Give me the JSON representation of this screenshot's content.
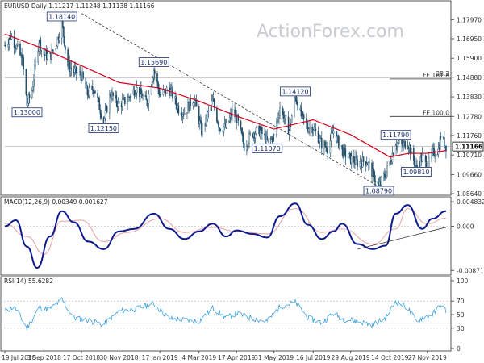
{
  "chart_data": [
    {
      "type": "candlestick",
      "title": "EURUSD Daily",
      "ohlc_readout": [
        "1.11217",
        "1.11248",
        "1.11138",
        "1.11166"
      ],
      "watermark": "ActionForex.com",
      "ylim": [
        1.0864,
        1.1842
      ],
      "y_ticks": [
        "1.17970",
        "1.16950",
        "1.15900",
        "1.14880",
        "1.13830",
        "1.12780",
        "1.11760",
        "1.10710",
        "1.09660",
        "1.08640"
      ],
      "x_ticks": [
        "19 Jul 2018",
        "3 Sep 2018",
        "17 Oct 2018",
        "30 Nov 2018",
        "17 Jan 2019",
        "4 Mar 2019",
        "17 Apr 2019",
        "31 May 2019",
        "16 Jul 2019",
        "29 Aug 2019",
        "14 Oct 2019",
        "27 Nov 2019"
      ],
      "current_price": "1.11166",
      "series": [
        {
          "kind": "close",
          "points": [
            [
              "2018-07-19",
              1.166
            ],
            [
              "2018-07-26",
              1.171
            ],
            [
              "2018-08-02",
              1.165
            ],
            [
              "2018-08-09",
              1.157
            ],
            [
              "2018-08-14",
              1.134
            ],
            [
              "2018-08-20",
              1.142
            ],
            [
              "2018-08-28",
              1.169
            ],
            [
              "2018-09-03",
              1.161
            ],
            [
              "2018-09-10",
              1.16
            ],
            [
              "2018-09-17",
              1.166
            ],
            [
              "2018-09-24",
              1.178
            ],
            [
              "2018-10-01",
              1.155
            ],
            [
              "2018-10-08",
              1.152
            ],
            [
              "2018-10-17",
              1.15
            ],
            [
              "2018-10-24",
              1.14
            ],
            [
              "2018-11-01",
              1.143
            ],
            [
              "2018-11-12",
              1.125
            ],
            [
              "2018-11-20",
              1.14
            ],
            [
              "2018-11-30",
              1.134
            ],
            [
              "2018-12-10",
              1.137
            ],
            [
              "2018-12-20",
              1.143
            ],
            [
              "2019-01-02",
              1.135
            ],
            [
              "2019-01-10",
              1.153
            ],
            [
              "2019-01-17",
              1.139
            ],
            [
              "2019-01-28",
              1.143
            ],
            [
              "2019-02-08",
              1.132
            ],
            [
              "2019-02-15",
              1.13
            ],
            [
              "2019-02-26",
              1.138
            ],
            [
              "2019-03-07",
              1.12
            ],
            [
              "2019-03-20",
              1.136
            ],
            [
              "2019-03-28",
              1.122
            ],
            [
              "2019-04-05",
              1.122
            ],
            [
              "2019-04-12",
              1.13
            ],
            [
              "2019-04-17",
              1.127
            ],
            [
              "2019-04-26",
              1.112
            ],
            [
              "2019-05-06",
              1.119
            ],
            [
              "2019-05-15",
              1.12
            ],
            [
              "2019-05-23",
              1.114
            ],
            [
              "2019-05-31",
              1.117
            ],
            [
              "2019-06-07",
              1.133
            ],
            [
              "2019-06-18",
              1.12
            ],
            [
              "2019-06-25",
              1.139
            ],
            [
              "2019-07-02",
              1.128
            ],
            [
              "2019-07-10",
              1.122
            ],
            [
              "2019-07-16",
              1.122
            ],
            [
              "2019-07-26",
              1.113
            ],
            [
              "2019-08-02",
              1.111
            ],
            [
              "2019-08-09",
              1.12
            ],
            [
              "2019-08-19",
              1.109
            ],
            [
              "2019-08-29",
              1.105
            ],
            [
              "2019-09-06",
              1.103
            ],
            [
              "2019-09-17",
              1.104
            ],
            [
              "2019-10-01",
              1.09
            ],
            [
              "2019-10-09",
              1.097
            ],
            [
              "2019-10-14",
              1.103
            ],
            [
              "2019-10-21",
              1.114
            ],
            [
              "2019-10-28",
              1.112
            ],
            [
              "2019-11-04",
              1.114
            ],
            [
              "2019-11-14",
              1.1
            ],
            [
              "2019-11-21",
              1.106
            ],
            [
              "2019-11-27",
              1.1
            ],
            [
              "2019-12-03",
              1.108
            ],
            [
              "2019-12-10",
              1.11
            ],
            [
              "2019-12-13",
              1.118
            ],
            [
              "2019-12-16",
              1.114
            ],
            [
              "2019-12-19",
              1.112
            ]
          ]
        },
        {
          "kind": "moving_average",
          "points": [
            [
              "2018-07-19",
              1.172
            ],
            [
              "2018-09-03",
              1.164
            ],
            [
              "2018-10-17",
              1.155
            ],
            [
              "2018-11-30",
              1.146
            ],
            [
              "2019-01-17",
              1.143
            ],
            [
              "2019-03-04",
              1.136
            ],
            [
              "2019-04-17",
              1.128
            ],
            [
              "2019-05-31",
              1.121
            ],
            [
              "2019-07-16",
              1.126
            ],
            [
              "2019-08-29",
              1.118
            ],
            [
              "2019-10-14",
              1.106
            ],
            [
              "2019-11-05",
              1.108
            ],
            [
              "2019-11-27",
              1.108
            ],
            [
              "2019-12-19",
              1.1095
            ]
          ]
        }
      ],
      "swing_labels": [
        {
          "text": "1.18140",
          "date": "2018-09-24",
          "price": 1.1814
        },
        {
          "text": "1.13000",
          "date": "2018-08-14",
          "price": 1.13
        },
        {
          "text": "1.15690",
          "date": "2019-01-10",
          "price": 1.1569
        },
        {
          "text": "1.12150",
          "date": "2018-11-12",
          "price": 1.1215
        },
        {
          "text": "1.14120",
          "date": "2019-06-25",
          "price": 1.1412
        },
        {
          "text": "1.11070",
          "date": "2019-05-23",
          "price": 1.1107
        },
        {
          "text": "1.11790",
          "date": "2019-10-21",
          "price": 1.1179
        },
        {
          "text": "1.09810",
          "date": "2019-11-14",
          "price": 1.0981
        },
        {
          "text": "1.08790",
          "date": "2019-10-01",
          "price": 1.0879
        }
      ],
      "levels": [
        {
          "label": "38.2",
          "price": 1.1488,
          "start": "2018-07-19"
        },
        {
          "label": "FE 161.8",
          "price": 1.1479,
          "start": "2019-10-14"
        },
        {
          "label": "FE 100.0",
          "price": 1.1278,
          "start": "2019-10-14"
        },
        {
          "price": 1.1117,
          "start": "2018-07-19",
          "style": "thin"
        }
      ],
      "trend_lines": [
        {
          "from": [
            "2018-10-17",
            1.183
          ],
          "to": [
            "2019-10-09",
            1.088
          ],
          "style": "dashed"
        }
      ]
    },
    {
      "type": "line",
      "title": "MACD(12,26,9) 0.00349 0.001627",
      "y_ticks": [
        "0.004832",
        "0.000",
        "-0.008718"
      ],
      "ylim": [
        -0.0093,
        0.0055
      ],
      "series": [
        {
          "kind": "macd",
          "points": [
            [
              "2018-07-19",
              0.0
            ],
            [
              "2018-08-01",
              0.0012
            ],
            [
              "2018-08-14",
              -0.004
            ],
            [
              "2018-08-26",
              -0.0082
            ],
            [
              "2018-09-10",
              -0.002
            ],
            [
              "2018-09-24",
              0.003
            ],
            [
              "2018-10-08",
              0.0008
            ],
            [
              "2018-10-25",
              -0.003
            ],
            [
              "2018-11-12",
              -0.0045
            ],
            [
              "2018-11-30",
              -0.001
            ],
            [
              "2018-12-18",
              -0.0005
            ],
            [
              "2019-01-10",
              0.0025
            ],
            [
              "2019-01-28",
              -0.0005
            ],
            [
              "2019-02-15",
              -0.0025
            ],
            [
              "2019-03-04",
              -0.001
            ],
            [
              "2019-03-20",
              0.0005
            ],
            [
              "2019-04-05",
              -0.002
            ],
            [
              "2019-04-17",
              -0.0008
            ],
            [
              "2019-05-06",
              -0.0015
            ],
            [
              "2019-05-23",
              -0.0022
            ],
            [
              "2019-06-07",
              0.002
            ],
            [
              "2019-06-25",
              0.0045
            ],
            [
              "2019-07-10",
              0.0003
            ],
            [
              "2019-07-26",
              -0.0025
            ],
            [
              "2019-08-09",
              -0.001
            ],
            [
              "2019-08-19",
              0.0005
            ],
            [
              "2019-09-06",
              -0.0035
            ],
            [
              "2019-09-24",
              -0.0045
            ],
            [
              "2019-10-09",
              -0.0038
            ],
            [
              "2019-10-21",
              0.0025
            ],
            [
              "2019-11-04",
              0.0042
            ],
            [
              "2019-11-21",
              -0.0005
            ],
            [
              "2019-12-03",
              0.0015
            ],
            [
              "2019-12-19",
              0.003
            ]
          ]
        },
        {
          "kind": "signal",
          "points": [
            [
              "2018-07-19",
              0.0005
            ],
            [
              "2018-08-14",
              -0.002
            ],
            [
              "2018-09-03",
              -0.0055
            ],
            [
              "2018-09-24",
              0.001
            ],
            [
              "2018-10-17",
              0.0012
            ],
            [
              "2018-11-12",
              -0.003
            ],
            [
              "2018-12-10",
              -0.0012
            ],
            [
              "2019-01-17",
              0.0015
            ],
            [
              "2019-02-15",
              -0.0012
            ],
            [
              "2019-03-20",
              -0.0002
            ],
            [
              "2019-04-17",
              -0.001
            ],
            [
              "2019-05-23",
              -0.0015
            ],
            [
              "2019-06-25",
              0.0035
            ],
            [
              "2019-07-26",
              -0.0012
            ],
            [
              "2019-08-19",
              -0.0005
            ],
            [
              "2019-09-24",
              -0.0035
            ],
            [
              "2019-10-21",
              -0.0005
            ],
            [
              "2019-11-04",
              0.0035
            ],
            [
              "2019-11-27",
              0.0005
            ],
            [
              "2019-12-19",
              0.0016
            ]
          ]
        }
      ],
      "trend_lines": [
        {
          "from": [
            "2019-09-06",
            -0.0045
          ],
          "to": [
            "2019-12-19",
            -0.0002
          ],
          "style": "solid"
        }
      ]
    },
    {
      "type": "line",
      "title": "RSI(14) 55.6282",
      "y_ticks": [
        "100",
        "70",
        "50",
        "30",
        "0"
      ],
      "ylim": [
        0,
        100
      ],
      "series": [
        {
          "kind": "rsi",
          "points": [
            [
              "2018-07-19",
              55
            ],
            [
              "2018-07-30",
              62
            ],
            [
              "2018-08-14",
              30
            ],
            [
              "2018-08-28",
              60
            ],
            [
              "2018-09-10",
              58
            ],
            [
              "2018-09-24",
              72
            ],
            [
              "2018-10-08",
              45
            ],
            [
              "2018-10-24",
              42
            ],
            [
              "2018-11-12",
              35
            ],
            [
              "2018-11-30",
              55
            ],
            [
              "2018-12-18",
              58
            ],
            [
              "2019-01-10",
              66
            ],
            [
              "2019-01-28",
              44
            ],
            [
              "2019-02-15",
              42
            ],
            [
              "2019-03-04",
              40
            ],
            [
              "2019-03-20",
              60
            ],
            [
              "2019-04-05",
              45
            ],
            [
              "2019-04-17",
              52
            ],
            [
              "2019-05-06",
              44
            ],
            [
              "2019-05-23",
              40
            ],
            [
              "2019-06-07",
              62
            ],
            [
              "2019-06-25",
              68
            ],
            [
              "2019-07-10",
              45
            ],
            [
              "2019-07-26",
              38
            ],
            [
              "2019-08-09",
              52
            ],
            [
              "2019-08-19",
              44
            ],
            [
              "2019-09-06",
              40
            ],
            [
              "2019-09-24",
              35
            ],
            [
              "2019-10-09",
              45
            ],
            [
              "2019-10-21",
              70
            ],
            [
              "2019-11-04",
              60
            ],
            [
              "2019-11-14",
              40
            ],
            [
              "2019-11-21",
              45
            ],
            [
              "2019-12-03",
              50
            ],
            [
              "2019-12-13",
              65
            ],
            [
              "2019-12-19",
              55.6
            ]
          ]
        }
      ]
    }
  ]
}
